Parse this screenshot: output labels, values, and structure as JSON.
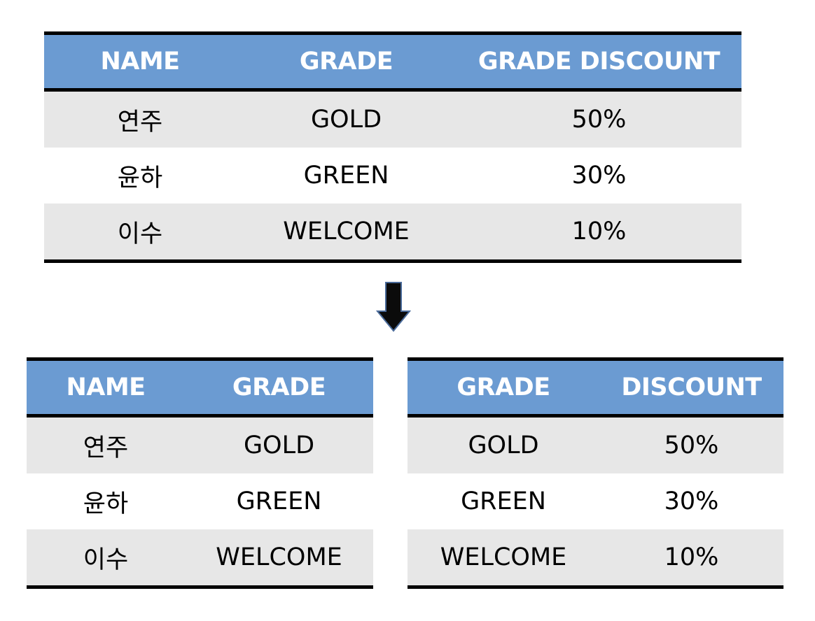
{
  "top_table": {
    "headers": [
      "NAME",
      "GRADE",
      "GRADE DISCOUNT"
    ],
    "rows": [
      [
        "연주",
        "GOLD",
        "50%"
      ],
      [
        "윤하",
        "GREEN",
        "30%"
      ],
      [
        "이수",
        "WELCOME",
        "10%"
      ]
    ]
  },
  "arrow_icon": "arrow-down-icon",
  "bottom_left_table": {
    "headers": [
      "NAME",
      "GRADE"
    ],
    "rows": [
      [
        "연주",
        "GOLD"
      ],
      [
        "윤하",
        "GREEN"
      ],
      [
        "이수",
        "WELCOME"
      ]
    ]
  },
  "bottom_right_table": {
    "headers": [
      "GRADE",
      "DISCOUNT"
    ],
    "rows": [
      [
        "GOLD",
        "50%"
      ],
      [
        "GREEN",
        "30%"
      ],
      [
        "WELCOME",
        "10%"
      ]
    ]
  },
  "colors": {
    "header_bg": "#6b9bd2",
    "header_text": "#ffffff",
    "row_alt_bg": "#e7e7e7",
    "border": "#000000"
  }
}
